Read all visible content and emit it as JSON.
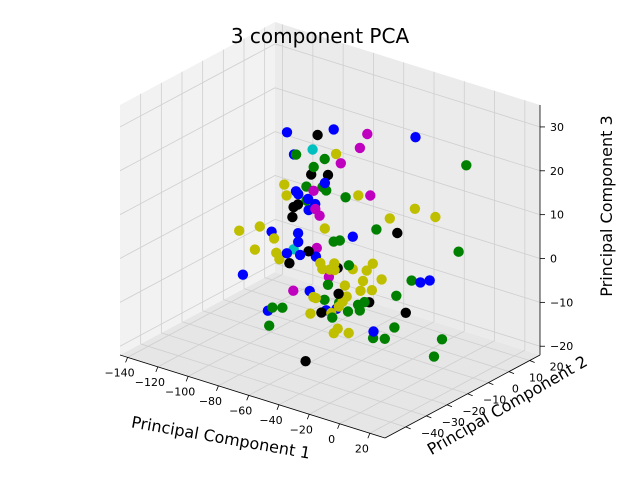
{
  "chart_data": {
    "type": "scatter",
    "projection": "3d",
    "title": "3 component PCA",
    "xlabel": "Principal Component 1",
    "ylabel": "Principal Component 2",
    "zlabel": "Principal Component 3",
    "xlim": [
      -145,
      30
    ],
    "ylim": [
      -50,
      25
    ],
    "zlim": [
      -22,
      35
    ],
    "xticks": [
      "−140",
      "−120",
      "−100",
      "−80",
      "−60",
      "−40",
      "−20",
      "0",
      "20"
    ],
    "xtick_values": [
      -140,
      -120,
      -100,
      -80,
      -60,
      -40,
      -20,
      0,
      20
    ],
    "yticks": [
      "−40",
      "−30",
      "−20",
      "−10",
      "0",
      "10",
      "20"
    ],
    "ytick_values": [
      -40,
      -30,
      -20,
      -10,
      0,
      10,
      20
    ],
    "zticks": [
      "−20",
      "−10",
      "0",
      "10",
      "20",
      "30"
    ],
    "ztick_values": [
      -20,
      -10,
      0,
      10,
      20,
      30
    ],
    "grid": true,
    "legend": "none",
    "colors": {
      "pane_left": "#f2f2f2",
      "pane_back": "#ebebeb",
      "pane_floor": "#e6e6e6",
      "green": "#008000",
      "blue": "#0000ff",
      "black": "#000000",
      "yellow": "#bfbf00",
      "magenta": "#bf00bf",
      "cyan": "#00bfbf"
    },
    "series": [
      {
        "color": "green",
        "points": [
          [
            -93.8,
            -2.3,
            17.2
          ],
          [
            -73.7,
            -8.5,
            18.1
          ],
          [
            -88.8,
            -1.0,
            10.1
          ],
          [
            -78.3,
            0.9,
            9.9
          ],
          [
            -83.8,
            11.5,
            -4.8
          ],
          [
            -103.0,
            17.2,
            3.9
          ],
          [
            -105.9,
            11.6,
            1.9
          ],
          [
            -10.9,
            15.6,
            -0.5
          ],
          [
            -45.0,
            -12.5,
            -0.2
          ],
          [
            -35.0,
            -15.4,
            -7.4
          ],
          [
            -40.6,
            -8.2,
            -9.2
          ],
          [
            -49.0,
            -10.0,
            -11.8
          ],
          [
            -76.8,
            -1.0,
            -14.4
          ],
          [
            -67.4,
            -28.3,
            -8.3
          ],
          [
            -13.8,
            -18.0,
            -12.2
          ],
          [
            -50.2,
            -10.3,
            14.2
          ],
          [
            -42.6,
            -22.3,
            -9.4
          ],
          [
            -22.7,
            -5.9,
            -6.4
          ],
          [
            -15.0,
            -12.5,
            -11.1
          ],
          [
            -91.0,
            16.5,
            -21.0
          ],
          [
            -16.2,
            23.2,
            16.7
          ],
          [
            3.2,
            -2.8,
            -14.3
          ],
          [
            7.9,
            -10.1,
            -15.9
          ],
          [
            -101.7,
            17.3,
            10.4
          ],
          [
            -60.9,
            -8.2,
            2.4
          ],
          [
            -19.9,
            -17.6,
            12.0
          ],
          [
            -16.5,
            -21.7,
            -11.4
          ],
          [
            -82.6,
            -22.0,
            -11.5
          ],
          [
            -30.9,
            7.5,
            -7.2
          ],
          [
            -89.4,
            9.9,
            -15.1
          ],
          [
            -76.7,
            16.0,
            -21.1
          ],
          [
            -93.0,
            -15.9,
            -18.3
          ]
        ]
      },
      {
        "color": "blue",
        "points": [
          [
            -124.8,
            16.0,
            14.3
          ],
          [
            -114.6,
            11.9,
            11.4
          ],
          [
            -105.9,
            12.6,
            -0.5
          ],
          [
            -103.6,
            14.1,
            0.7
          ],
          [
            -117.5,
            15.0,
            1.9
          ],
          [
            -89.1,
            -10.2,
            -2.8
          ],
          [
            -87.1,
            -1.4,
            7.6
          ],
          [
            -107.2,
            17.1,
            -12.4
          ],
          [
            -72.1,
            0.0,
            24.7
          ],
          [
            -70.3,
            -5.6,
            14.1
          ],
          [
            -116.7,
            2.6,
            -4.1
          ],
          [
            -88.4,
            0.3,
            -14.0
          ],
          [
            -95.6,
            0.0,
            -1.5
          ],
          [
            -81.6,
            -9.3,
            -2.6
          ],
          [
            -83.4,
            17.5,
            -5.4
          ],
          [
            -46.6,
            20.9,
            20.4
          ],
          [
            -97.7,
            -13.1,
            -16.1
          ],
          [
            7.9,
            -12.2,
            2.0
          ],
          [
            -18.3,
            2.5,
            -5.0
          ],
          [
            -2.7,
            -31.6,
            -5.9
          ],
          [
            -89.7,
            14.3,
            -21.7
          ],
          [
            -89.1,
            8.8,
            -20.6
          ],
          [
            -92.1,
            -2.5,
            8.4
          ],
          [
            -118.7,
            -9.8,
            -11.0
          ],
          [
            -76.2,
            -14.2,
            2.2
          ]
        ]
      },
      {
        "color": "black",
        "points": [
          [
            -85.1,
            1.7,
            21.6
          ],
          [
            -78.6,
            2.0,
            13.1
          ],
          [
            -107.2,
            14.8,
            6.9
          ],
          [
            -83.3,
            -11.2,
            8.6
          ],
          [
            -74.0,
            -18.6,
            9.2
          ],
          [
            -77.9,
            -17.2,
            -2.1
          ],
          [
            -59.5,
            -7.3,
            -3.7
          ],
          [
            -48.4,
            -0.2,
            -12.1
          ],
          [
            -92.5,
            2.8,
            -6.0
          ],
          [
            -31.9,
            -27.1,
            -1.6
          ],
          [
            -59.6,
            -15.1,
            -11.9
          ],
          [
            -19.2,
            -3.9,
            -10.4
          ],
          [
            -69.0,
            -15.9,
            -23.8
          ],
          [
            -19.6,
            -7.7,
            8.7
          ],
          [
            -76.4,
            -14.2,
            10.7
          ]
        ]
      },
      {
        "color": "yellow",
        "points": [
          [
            -136.3,
            8.9,
            -11.9
          ],
          [
            -105.8,
            -3.1,
            -6.3
          ],
          [
            -123.4,
            11.3,
            -13.3
          ],
          [
            -123.5,
            -8.1,
            -1.9
          ],
          [
            -125.3,
            3.2,
            -4.0
          ],
          [
            -108.9,
            15.6,
            -1.1
          ],
          [
            -61.9,
            -11.8,
            6.2
          ],
          [
            -97.9,
            -5.0,
            10.6
          ],
          [
            -54.9,
            -23.9,
            -9.4
          ],
          [
            -49.0,
            -11.5,
            -5.5
          ],
          [
            -37.0,
            -21.4,
            -5.4
          ],
          [
            -33.3,
            -28.4,
            -10.4
          ],
          [
            -30.3,
            -23.4,
            -11.3
          ],
          [
            -60.9,
            -10.1,
            -3.5
          ],
          [
            -40.2,
            -9.2,
            -4.1
          ],
          [
            -37.5,
            -2.2,
            -5.2
          ],
          [
            -52.9,
            -13.8,
            -0.3
          ],
          [
            -52.4,
            -14.0,
            -1.7
          ],
          [
            -69.3,
            -7.6,
            -4.9
          ],
          [
            -63.8,
            -3.6,
            -13.9
          ],
          [
            -70.9,
            -10.7,
            -10.7
          ],
          [
            -49.2,
            -10.5,
            -8.3
          ],
          [
            -47.1,
            -16.4,
            -13.9
          ],
          [
            -49.7,
            -17.6,
            -10.3
          ],
          [
            -3.6,
            -1.0,
            12.4
          ],
          [
            -19.1,
            -11.7,
            13.1
          ],
          [
            -24.9,
            -16.1,
            -2.8
          ],
          [
            -10.0,
            -26.6,
            7.5
          ],
          [
            -26.2,
            -20.7,
            -1.9
          ],
          [
            -21.9,
            2.5,
            11.4
          ],
          [
            -22.2,
            -20.6,
            3.1
          ],
          [
            -81.7,
            8.2,
            16.0
          ],
          [
            -107.3,
            3.0,
            5.1
          ],
          [
            -113.5,
            1.5,
            -5.0
          ],
          [
            -55.0,
            -3.3,
            -4.5
          ],
          [
            -51.8,
            -3.0,
            12.6
          ],
          [
            -35.8,
            -33.1,
            6.5
          ],
          [
            -51.7,
            -23.6,
            -5.6
          ]
        ]
      },
      {
        "color": "magenta",
        "points": [
          [
            -66.3,
            8.4,
            19.0
          ],
          [
            -48.1,
            0.1,
            12.2
          ],
          [
            -56.6,
            4.9,
            24.1
          ],
          [
            -68.4,
            0.7,
            17.2
          ],
          [
            -76.9,
            -5.4,
            7.4
          ],
          [
            -60.7,
            -27.9,
            -3.8
          ],
          [
            -79.5,
            -4.3,
            11.0
          ],
          [
            -68.9,
            -9.2,
            7.7
          ],
          [
            -92.5,
            12.6,
            -14.3
          ],
          [
            -111.1,
            20.4,
            -11.7
          ]
        ]
      },
      {
        "color": "cyan",
        "points": [
          [
            -92.9,
            5.0,
            16.6
          ],
          [
            -107.4,
            6.5,
            -8.1
          ]
        ]
      }
    ]
  }
}
